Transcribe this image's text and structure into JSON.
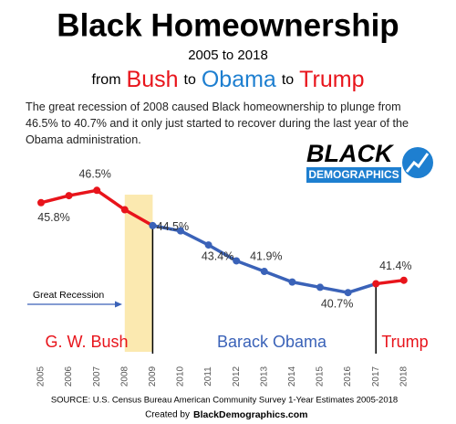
{
  "chart_data": {
    "type": "line",
    "title": "Black Homeownership",
    "subtitle": "2005 to 2018",
    "tagline": [
      {
        "text": "from",
        "color": "#000000"
      },
      {
        "text": "Bush",
        "color": "#e8141b"
      },
      {
        "text": "to",
        "color": "#000000"
      },
      {
        "text": "Obama",
        "color": "#1e7fd0"
      },
      {
        "text": "to",
        "color": "#000000"
      },
      {
        "text": "Trump",
        "color": "#e8141b"
      }
    ],
    "description": "The great recession of 2008 caused Black homeownership to plunge from 46.5% to 40.7% and it only just started to recover during the last year of the Obama administration.",
    "logo": {
      "top": "BLACK",
      "bottom": "DEMOGRAPHICS"
    },
    "categories": [
      "2005",
      "2006",
      "2007",
      "2008",
      "2009",
      "2010",
      "2011",
      "2012",
      "2013",
      "2014",
      "2015",
      "2016",
      "2017",
      "2018"
    ],
    "values": [
      45.8,
      46.2,
      46.5,
      45.4,
      44.5,
      44.2,
      43.4,
      42.5,
      41.9,
      41.3,
      41.0,
      40.7,
      41.2,
      41.4
    ],
    "value_labels": [
      "45.8%",
      null,
      "46.5%",
      null,
      "44.5%",
      null,
      "43.4%",
      null,
      "41.9%",
      null,
      null,
      "40.7%",
      null,
      "41.4%"
    ],
    "ylim": [
      39,
      47.5
    ],
    "eras": [
      {
        "name": "G. W. Bush",
        "color": "#e8141b",
        "from": "2005",
        "to": "2009"
      },
      {
        "name": "Barack Obama",
        "color": "#3a62b8",
        "from": "2009",
        "to": "2017"
      },
      {
        "name": "Trump",
        "color": "#e8141b",
        "from": "2017",
        "to": "2018"
      }
    ],
    "recession": {
      "label": "Great Recession",
      "from": "2008",
      "to": "2009",
      "color": "#fbe9b0"
    },
    "source": "SOURCE: U.S. Census Bureau American Community  Survey 1-Year Estimates 2005-2018",
    "credit": {
      "text": "Created by",
      "site": "BlackDemographics.com"
    }
  }
}
